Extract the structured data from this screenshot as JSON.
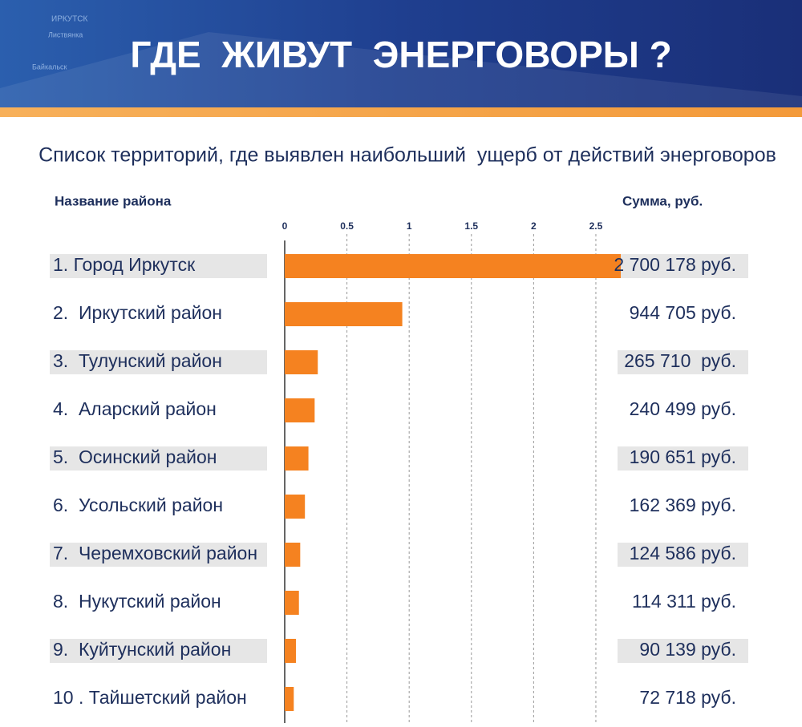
{
  "header": {
    "map_labels": [
      "ИРКУТСК",
      "Листвянка",
      "Байкальск"
    ]
  },
  "chart_data": {
    "type": "bar",
    "title": "ГДЕ  ЖИВУТ  ЭНЕРГОВОРЫ ?",
    "subtitle": "Список территорий, где выявлен наибольший  ущерб от действий энерговоров",
    "category_header": "Название района",
    "value_header": "Сумма, руб.",
    "categories": [
      "1. Город Иркутск",
      "2.  Иркутский район",
      "3.  Тулунский район",
      "4.  Аларский район",
      "5.  Осинский район",
      "6.  Усольский район",
      "7.  Черемховский район",
      "8.  Нукутский район",
      "9.  Куйтунский район",
      "10 . Тайшетский район"
    ],
    "values": [
      2.700178,
      0.944705,
      0.26571,
      0.240499,
      0.190651,
      0.162369,
      0.124586,
      0.114311,
      0.090139,
      0.072718
    ],
    "value_labels": [
      "2 700 178 руб.",
      "944 705 руб.",
      "265 710  руб.",
      "240 499 руб.",
      "190 651 руб.",
      "162 369 руб.",
      "124 586 руб.",
      "114 311 руб.",
      "90 139 руб.",
      "72 718 руб."
    ],
    "color": "#f58220",
    "xlim": [
      0,
      2.7
    ],
    "xticks": [
      0,
      0.5,
      1,
      1.5,
      2,
      2.5
    ],
    "grid": true
  }
}
